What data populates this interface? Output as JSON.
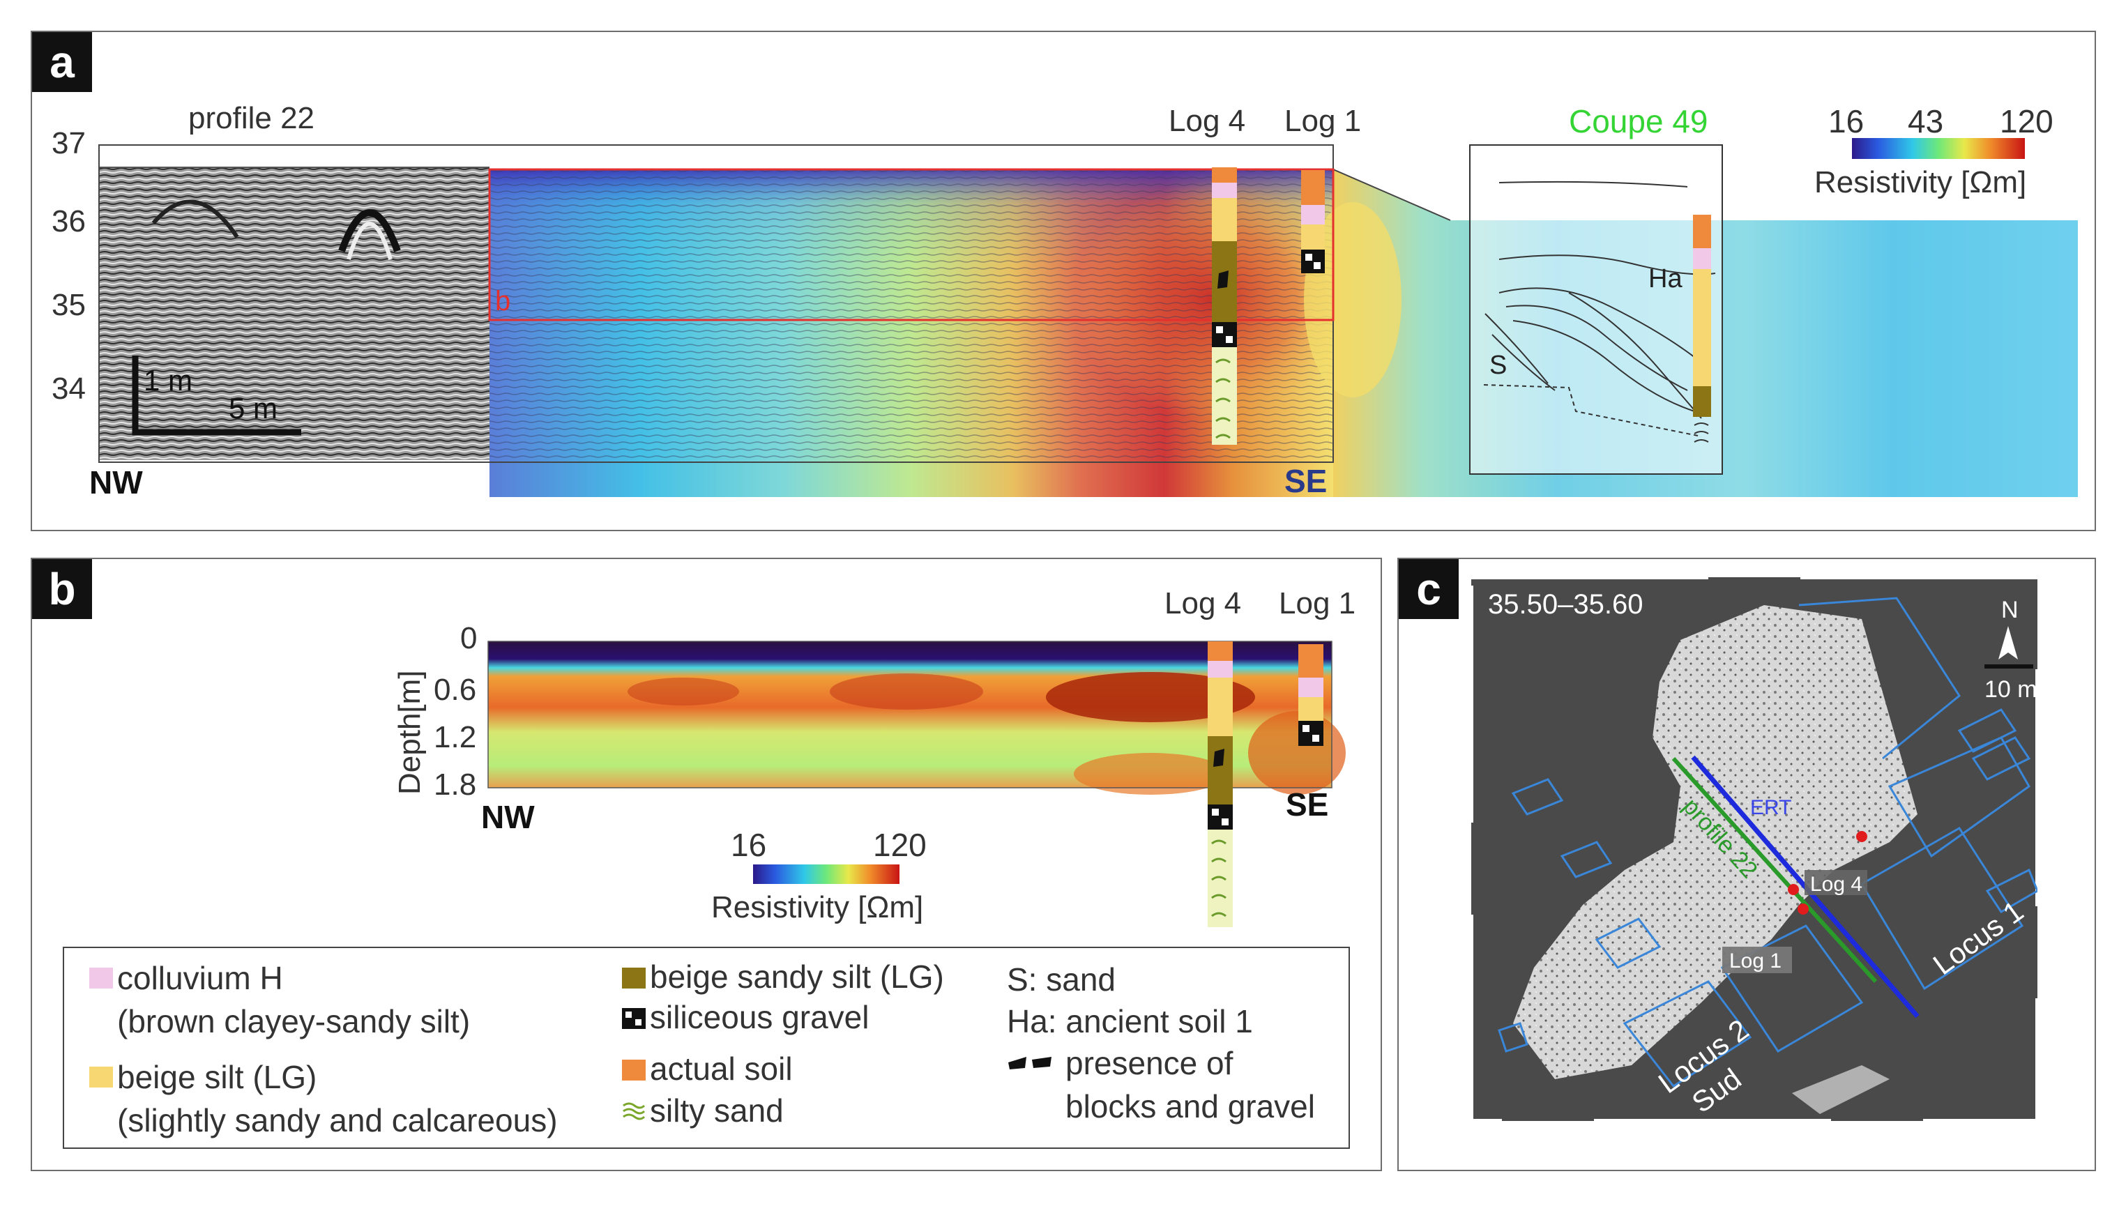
{
  "panel_a": {
    "label": "a",
    "profile_label": "profile 22",
    "elevation_ticks": [
      "37",
      "36",
      "35",
      "34"
    ],
    "scale_vertical": "1 m",
    "scale_horizontal": "5 m",
    "dir_left": "NW",
    "dir_right": "SE",
    "log4": "Log 4",
    "log1": "Log 1",
    "box_label": "b",
    "coupe_title": "Coupe 49",
    "coupe_ha": "Ha",
    "coupe_s": "S",
    "colorbar_ticks": [
      "16",
      "43",
      "120"
    ],
    "colorbar_title": "Resistivity [Ωm]"
  },
  "panel_b": {
    "label": "b",
    "depth_ticks": [
      "0",
      "0.6",
      "1.2",
      "1.8"
    ],
    "ylabel": "Depth[m]",
    "dir_left": "NW",
    "dir_right": "SE",
    "log4": "Log 4",
    "log1": "Log 1",
    "colorbar_ticks": [
      "16",
      "120"
    ],
    "colorbar_title": "Resistivity [Ωm]"
  },
  "legend": {
    "col1": [
      {
        "line1": "colluvium H",
        "line2": "(brown clayey-sandy silt)",
        "color": "#f2c8e8"
      },
      {
        "line1": "beige silt (LG)",
        "line2": "(slightly sandy and calcareous)",
        "color": "#f7d772"
      }
    ],
    "col2": [
      {
        "text": "beige sandy silt (LG)",
        "color": "#8c7515",
        "kind": "swatch"
      },
      {
        "text": "siliceous gravel",
        "kind": "gravel-icon"
      },
      {
        "text": "actual soil",
        "color": "#ef8a3c",
        "kind": "swatch"
      },
      {
        "text": "silty sand",
        "kind": "silty-sand-icon"
      }
    ],
    "col3": {
      "sand": "S: sand",
      "ha": "Ha: ancient soil 1",
      "blocks_line1": "presence of",
      "blocks_line2": "blocks and gravel"
    }
  },
  "panel_c": {
    "label": "c",
    "range": "35.50–35.60",
    "north": "N",
    "scale": "10 m",
    "ert": "ERT",
    "profile": "profile 22",
    "log4": "Log 4",
    "log1": "Log 1",
    "locus1": "Locus 1",
    "locus2_line1": "Locus 2",
    "locus2_line2": "Sud"
  },
  "colors": {
    "ert_line": "#1d2bdc",
    "profile_line": "#2a9a2a",
    "coupe_title": "#35d435",
    "box_b": "#e53030",
    "locus_outline": "#3a86d8",
    "dir_se_a": "#2a3a8a"
  }
}
